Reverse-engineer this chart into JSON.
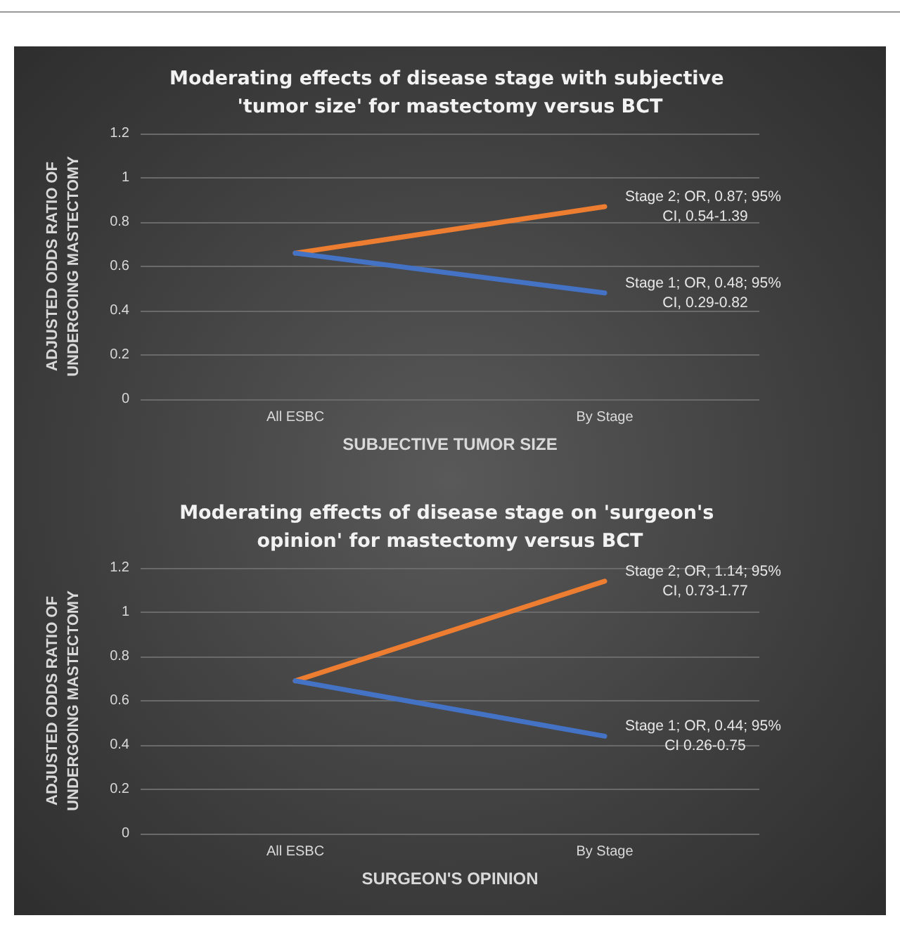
{
  "chart_data": [
    {
      "type": "line",
      "title": "Moderating effects of disease stage with subjective 'tumor size' for mastectomy versus BCT",
      "xlabel": "SUBJECTIVE TUMOR SIZE",
      "ylabel": "ADJUSTED ODDS RATIO OF UNDERGOING MASTECTOMY",
      "categories": [
        "All ESBC",
        "By Stage"
      ],
      "series": [
        {
          "name": "Stage 2; OR, 0.87; 95% CI, 0.54-1.39",
          "color": "#ed7d31",
          "values": [
            0.66,
            0.87
          ]
        },
        {
          "name": "Stage 1; OR, 0.48; 95% CI, 0.29-0.82",
          "color": "#4472c4",
          "values": [
            0.66,
            0.48
          ]
        }
      ],
      "ylim": [
        0,
        1.2
      ],
      "yticks": [
        0,
        0.2,
        0.4,
        0.6,
        0.8,
        1,
        1.2
      ],
      "grid": "y"
    },
    {
      "type": "line",
      "title": "Moderating effects of disease stage on 'surgeon's opinion' for mastectomy versus BCT",
      "xlabel": "SURGEON'S OPINION",
      "ylabel": "ADJUSTED ODDS RATIO OF UNDERGOING MASTECTOMY",
      "categories": [
        "All ESBC",
        "By Stage"
      ],
      "series": [
        {
          "name": "Stage 2; OR, 1.14; 95% CI, 0.73-1.77",
          "color": "#ed7d31",
          "values": [
            0.69,
            1.14
          ]
        },
        {
          "name": "Stage 1; OR, 0.44; 95% CI 0.26-0.75",
          "color": "#4472c4",
          "values": [
            0.69,
            0.44
          ]
        }
      ],
      "ylim": [
        0,
        1.2
      ],
      "yticks": [
        0,
        0.2,
        0.4,
        0.6,
        0.8,
        1,
        1.2
      ],
      "grid": "y"
    }
  ]
}
